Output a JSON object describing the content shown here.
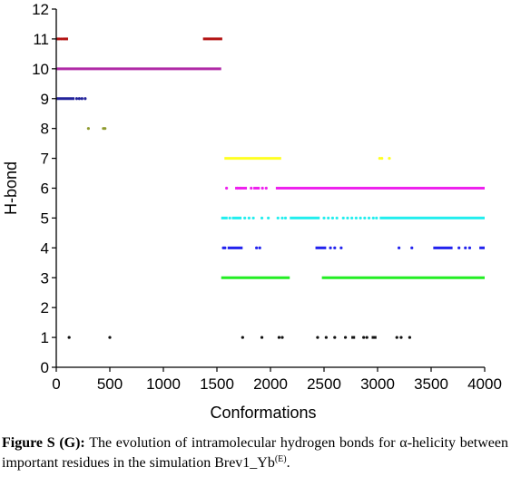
{
  "chart_data": {
    "type": "scatter",
    "xlabel": "Conformations",
    "ylabel": "H-bond",
    "xlim": [
      0,
      4000
    ],
    "ylim": [
      0,
      12
    ],
    "xticks": [
      0,
      500,
      1000,
      1500,
      2000,
      2500,
      3000,
      3500,
      4000
    ],
    "yticks": [
      0,
      1,
      2,
      3,
      4,
      5,
      6,
      7,
      8,
      9,
      10,
      11,
      12
    ],
    "grid": false,
    "legend": "none",
    "series": [
      {
        "y": 11,
        "color": "#b31313",
        "segments": [
          [
            0,
            40
          ],
          [
            60,
            110
          ],
          [
            1370,
            1550
          ]
        ],
        "points": [
          50
        ]
      },
      {
        "y": 10,
        "color": "#b02aa6",
        "segments": [
          [
            0,
            1540
          ]
        ],
        "points": []
      },
      {
        "y": 9,
        "color": "#22229a",
        "segments": [
          [
            0,
            170
          ]
        ],
        "points": [
          190,
          215,
          240,
          270
        ]
      },
      {
        "y": 8,
        "color": "#8e9a2e",
        "segments": [],
        "points": [
          300,
          440,
          455
        ]
      },
      {
        "y": 7,
        "color": "#ffff22",
        "segments": [
          [
            1570,
            2100
          ]
        ],
        "points": [
          3020,
          3040,
          3110
        ]
      },
      {
        "y": 6,
        "color": "#ee22ee",
        "segments": [
          [
            1670,
            1780
          ],
          [
            1840,
            1900
          ],
          [
            2050,
            4000
          ]
        ],
        "points": [
          1590,
          1690,
          1720,
          1820,
          1925,
          1960
        ]
      },
      {
        "y": 5,
        "color": "#22eeee",
        "segments": [
          [
            1540,
            1600
          ],
          [
            1640,
            1730
          ],
          [
            2180,
            2460
          ],
          [
            3020,
            4000
          ]
        ],
        "points": [
          1620,
          1760,
          1800,
          1840,
          1920,
          1980,
          2070,
          2110,
          2140,
          2500,
          2540,
          2580,
          2620,
          2680,
          2720,
          2760,
          2800,
          2840,
          2880,
          2920,
          2960,
          2990
        ]
      },
      {
        "y": 4,
        "color": "#2222ee",
        "segments": [
          [
            1600,
            1740
          ],
          [
            2420,
            2520
          ],
          [
            3520,
            3700
          ],
          [
            3950,
            4000
          ]
        ],
        "points": [
          1560,
          1575,
          1870,
          1900,
          2560,
          2600,
          2660,
          3200,
          3320,
          3760,
          3820,
          3860
        ]
      },
      {
        "y": 3,
        "color": "#22ee22",
        "segments": [
          [
            1540,
            2180
          ],
          [
            2480,
            4000
          ]
        ],
        "points": []
      },
      {
        "y": 1,
        "color": "#111111",
        "segments": [
          [
            2755,
            2790
          ],
          [
            2945,
            2990
          ]
        ],
        "points": [
          120,
          500,
          1740,
          1920,
          2080,
          2110,
          2440,
          2520,
          2600,
          2700,
          2870,
          2900,
          3180,
          3220,
          3300
        ]
      }
    ]
  },
  "caption": {
    "label": "Figure S (G):",
    "text": "The evolution of intramolecular hydrogen bonds for α-helicity between important residues in the simulation Brev1_Yb",
    "superscript": "(E)",
    "end": "."
  }
}
